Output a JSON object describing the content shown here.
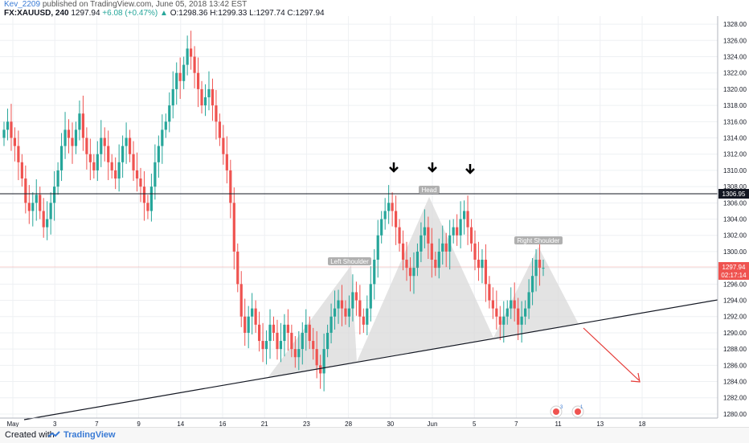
{
  "header": {
    "author": "Kev_2209",
    "published": "published on TradingView.com, June 05, 2018 13:42 EST",
    "symbol": "FX:XAUUSD, 240",
    "last": "1297.94",
    "change": "+6.08 (+0.47%)",
    "open_label": "O:",
    "open": "1298.36",
    "high_label": "H:",
    "high": "1299.33",
    "low_label": "L:",
    "low": "1297.74",
    "close_label": "C:",
    "close": "1297.94"
  },
  "footer": {
    "created_with": "Created with",
    "brand": "TradingView"
  },
  "colors": {
    "up": "#26a69a",
    "down": "#ef5350",
    "grid": "#eef0f3",
    "price_tag": "#ef5350",
    "level_tag": "#131722",
    "pattern_fill": "#d6d6d6",
    "arrow": "#e53935"
  },
  "chart_data": {
    "type": "candlestick",
    "title": "",
    "y_ticks": [
      1280,
      1282,
      1284,
      1286,
      1288,
      1290,
      1292,
      1294,
      1296,
      1298,
      1300,
      1302,
      1304,
      1306,
      1308,
      1310,
      1312,
      1314,
      1316,
      1318,
      1320,
      1322,
      1324,
      1326,
      1328
    ],
    "ylim": [
      1279.5,
      1329
    ],
    "x_tick_labels": [
      "May",
      "3",
      "7",
      "9",
      "14",
      "16",
      "21",
      "23",
      "28",
      "30",
      "Jun",
      "5",
      "7",
      "11",
      "13",
      "18"
    ],
    "current_price": "1297.94",
    "countdown": "02:17:14",
    "resistance_level": "1306.95",
    "pattern_labels": [
      "Left Shoulder",
      "Head",
      "Right Shoulder"
    ],
    "events": [
      "3",
      "1"
    ],
    "closes": [
      1315,
      1316,
      1314,
      1313,
      1311,
      1309,
      1306,
      1305,
      1306,
      1307,
      1305,
      1303,
      1304,
      1306,
      1308,
      1310,
      1313,
      1315,
      1314,
      1313,
      1315,
      1317,
      1314,
      1312,
      1311,
      1310,
      1312,
      1314,
      1313,
      1311,
      1310,
      1309,
      1311,
      1313,
      1314,
      1312,
      1310,
      1309,
      1308,
      1306,
      1305,
      1308,
      1311,
      1313,
      1315,
      1316,
      1318,
      1320,
      1322,
      1321,
      1323,
      1325,
      1324,
      1322,
      1320,
      1318,
      1319,
      1320,
      1318,
      1316,
      1314,
      1312,
      1310,
      1306,
      1300,
      1296,
      1292,
      1290,
      1292,
      1293,
      1291,
      1289,
      1288,
      1289,
      1291,
      1290,
      1288,
      1289,
      1291,
      1290,
      1288,
      1287,
      1288,
      1290,
      1291,
      1289,
      1288,
      1286,
      1285,
      1288,
      1290,
      1292,
      1293,
      1294,
      1293,
      1292,
      1293,
      1295,
      1294,
      1292,
      1291,
      1293,
      1296,
      1299,
      1302,
      1304,
      1305,
      1306,
      1305,
      1303,
      1301,
      1299,
      1298,
      1297,
      1298,
      1300,
      1302,
      1303,
      1301,
      1299,
      1298,
      1300,
      1301,
      1300,
      1302,
      1303,
      1302,
      1304,
      1305,
      1303,
      1301,
      1299,
      1298,
      1299,
      1296,
      1294,
      1293,
      1292,
      1291,
      1292,
      1293,
      1294,
      1293,
      1291,
      1292,
      1293,
      1295,
      1297,
      1299,
      1298,
      1298
    ]
  }
}
